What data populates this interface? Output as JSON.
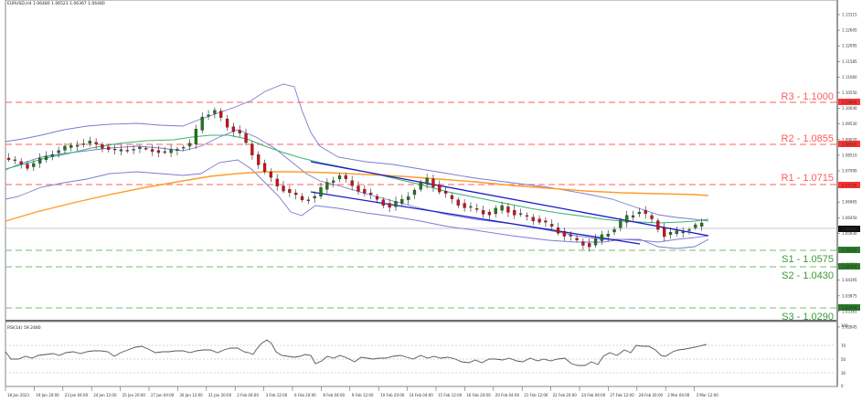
{
  "header": {
    "symbol_line": "EURUSD,H4  1.06480 1.06523 1.06367 1.06480"
  },
  "rsi_panel": {
    "label": "RSI(14) 59.2480",
    "levels": [
      "100",
      "70",
      "50",
      "30",
      "0"
    ]
  },
  "levels": {
    "r3": {
      "label": "R3 - 1.1000",
      "price": "1.10000"
    },
    "r2": {
      "label": "R2 - 1.0855",
      "price": "1.08550"
    },
    "r1": {
      "label": "R1 - 1.0715",
      "price": "1.07150"
    },
    "current": {
      "price": "1.06480"
    },
    "s1": {
      "label": "S1 - 1.0575",
      "price": "1.05750"
    },
    "s2": {
      "label": "S2 - 1.0430",
      "price": "1.04300"
    },
    "s3": {
      "label": "S3 - 1.0290",
      "price": "1.02900"
    }
  },
  "colors": {
    "resistance": "#ff5a5a",
    "support": "#3a9a3a",
    "current_box": "#000000",
    "bollinger": "#7a7ad0",
    "ma_green": "#3cb371",
    "ma_orange": "#ff9c2a",
    "channel": "#1a1ac8",
    "bull_candle": "#1a7a1a",
    "bear_candle": "#d0101a",
    "rsi_line": "#555555"
  },
  "chart_data": {
    "type": "candlestick",
    "title": "EURUSD,H4",
    "ohlc_last": {
      "open": 1.0648,
      "high": 1.06523,
      "low": 1.06367,
      "close": 1.0648
    },
    "y_axis_ticks": [
      "1.13115",
      "1.12605",
      "1.12095",
      "1.11585",
      "1.11060",
      "1.10550",
      "1.10040",
      "1.09530",
      "1.09020",
      "1.08510",
      "1.07990",
      "1.07475",
      "1.06965",
      "1.06450",
      "1.05930",
      "1.05420",
      "1.04910",
      "1.04395",
      "1.03875",
      "1.03365",
      "1.02845"
    ],
    "x_axis_ticks": [
      "18 Jan 2023",
      "19 Jan 20:00",
      "23 Jan 04:00",
      "24 Jan 12:00",
      "25 Jan 20:00",
      "27 Jan 04:00",
      "30 Jan 12:00",
      "31 Jan 20:00",
      "2 Feb 04:00",
      "3 Feb 12:00",
      "6 Feb 20:00",
      "8 Feb 04:00",
      "9 Feb 12:00",
      "10 Feb 20:00",
      "14 Feb 04:00",
      "15 Feb 12:00",
      "16 Feb 20:00",
      "20 Feb 04:00",
      "21 Feb 12:00",
      "22 Feb 20:00",
      "24 Feb 04:00",
      "27 Feb 12:00",
      "28 Feb 20:00",
      "2 Mar 04:00",
      "3 Mar 12:00"
    ],
    "horizontal_levels": [
      {
        "name": "R3",
        "value": 1.1
      },
      {
        "name": "R2",
        "value": 1.0855
      },
      {
        "name": "R1",
        "value": 1.0715
      },
      {
        "name": "S1",
        "value": 1.0575
      },
      {
        "name": "S2",
        "value": 1.043
      },
      {
        "name": "S3",
        "value": 1.029
      }
    ],
    "current_price": 1.0648,
    "close_series_approx": [
      1.083,
      1.0815,
      1.0835,
      1.0855,
      1.087,
      1.088,
      1.0885,
      1.0872,
      1.086,
      1.0865,
      1.0868,
      1.0862,
      1.0855,
      1.0868,
      1.088,
      1.096,
      1.0975,
      1.093,
      1.091,
      1.085,
      1.08,
      1.076,
      1.074,
      1.072,
      1.073,
      1.077,
      1.079,
      1.076,
      1.074,
      1.072,
      1.07,
      1.072,
      1.075,
      1.078,
      1.0745,
      1.072,
      1.07,
      1.069,
      1.068,
      1.07,
      1.068,
      1.067,
      1.066,
      1.064,
      1.062,
      1.06,
      1.059,
      1.0615,
      1.064,
      1.067,
      1.069,
      1.066,
      1.062,
      1.0625,
      1.064,
      1.0648
    ],
    "indicators": [
      "Bollinger Bands",
      "Moving Average (green)",
      "Moving Average (orange, 200)",
      "Downward channel (blue)"
    ],
    "rsi": {
      "period": 14,
      "last": 59.248,
      "levels": [
        70,
        50,
        30
      ],
      "range": [
        0,
        100
      ]
    },
    "grid": false
  }
}
